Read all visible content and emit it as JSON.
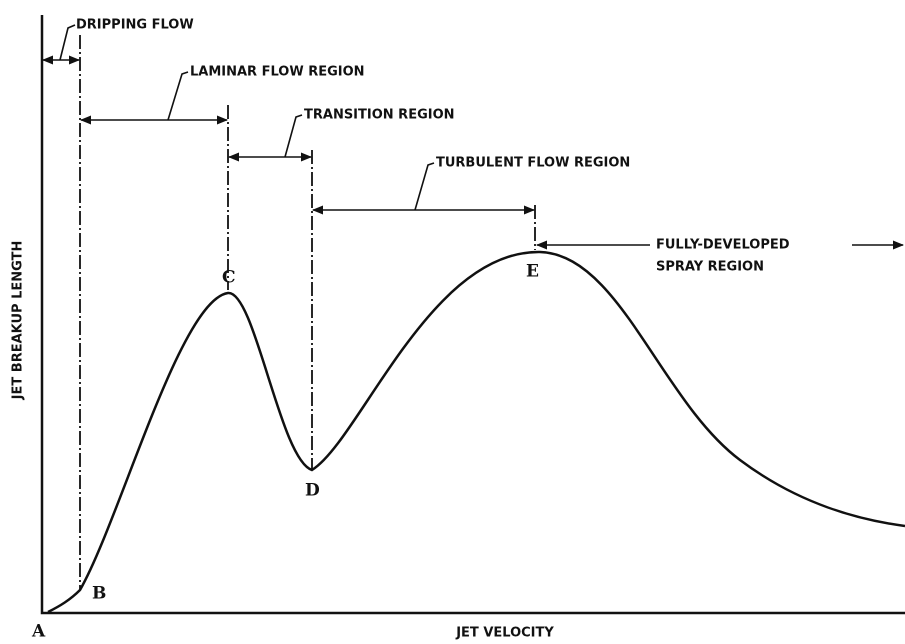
{
  "diagram": {
    "axes": {
      "x_label": "JET VELOCITY",
      "y_label": "JET BREAKUP LENGTH"
    },
    "points": [
      "A",
      "B",
      "C",
      "D",
      "E"
    ],
    "regions": [
      {
        "lines": [
          "DRIPPING FLOW"
        ]
      },
      {
        "lines": [
          "LAMINAR FLOW REGION"
        ]
      },
      {
        "lines": [
          "TRANSITION REGION"
        ]
      },
      {
        "lines": [
          "TURBULENT FLOW REGION"
        ]
      },
      {
        "lines": [
          "FULLY-DEVELOPED",
          "SPRAY REGION"
        ]
      }
    ]
  }
}
